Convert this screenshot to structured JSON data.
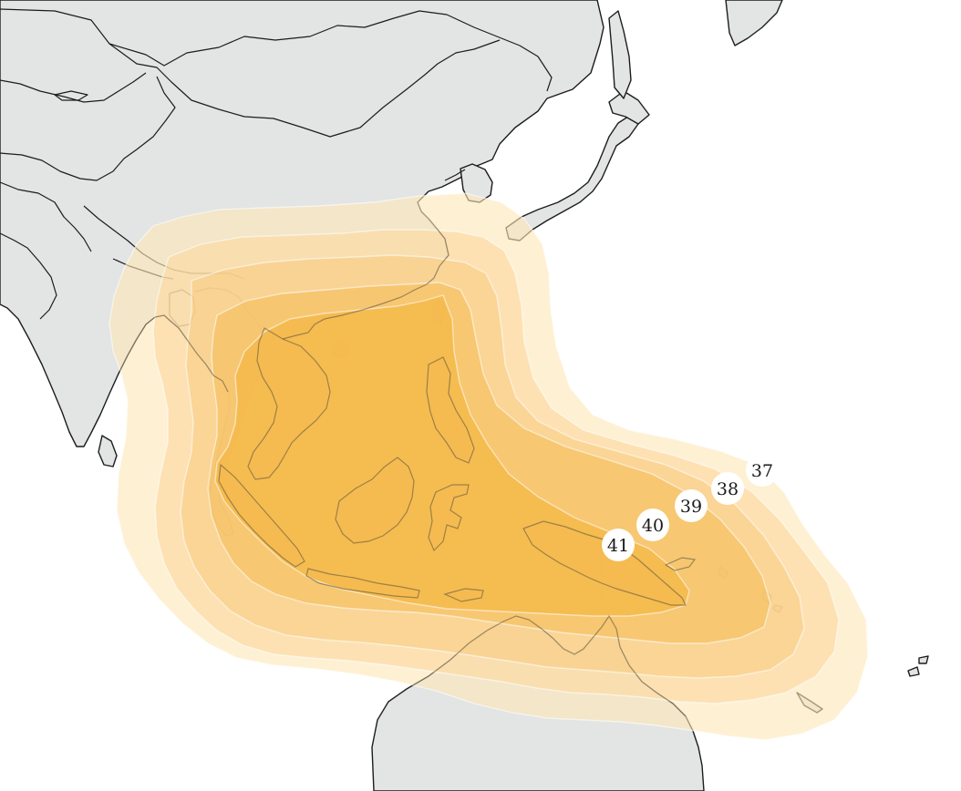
{
  "map": {
    "contour_levels": [
      {
        "value": "37",
        "color": "#fde6b8"
      },
      {
        "value": "38",
        "color": "#fcd9a0"
      },
      {
        "value": "39",
        "color": "#f9cd85"
      },
      {
        "value": "40",
        "color": "#f6bf5c"
      },
      {
        "value": "41",
        "color": "#f3b53c"
      }
    ],
    "land_color": "#e3e4e4",
    "outline_color": "#1c1c1c",
    "icons": {
      "contour_label": "circle-label-icon"
    }
  }
}
